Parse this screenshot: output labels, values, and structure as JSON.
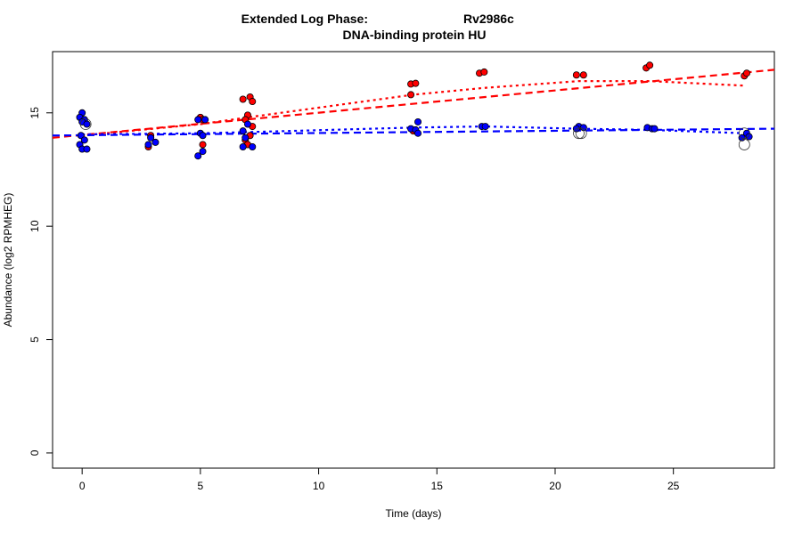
{
  "chart_data": {
    "type": "scatter",
    "title_line1_left": "Extended Log Phase:",
    "title_line1_right": "Rv2986c",
    "title_line2": "DNA-binding protein HU",
    "xlabel": "Time  (days)",
    "ylabel": "Abundance  (log2 RPMHEG)",
    "xlim": [
      -1.25,
      29.27
    ],
    "ylim": [
      -0.67,
      17.7
    ],
    "xticks": [
      0,
      5,
      10,
      15,
      20,
      25
    ],
    "yticks": [
      0,
      5,
      10,
      15
    ],
    "grid": false,
    "colors": {
      "red": "#ff0000",
      "blue": "#0000ff"
    },
    "series": [
      {
        "color": "red",
        "points": [
          [
            13.9,
            16.27
          ],
          [
            14.1,
            16.3
          ],
          [
            13.9,
            15.8
          ],
          [
            16.8,
            16.75
          ],
          [
            17.0,
            16.8
          ],
          [
            20.9,
            16.67
          ],
          [
            21.2,
            16.67
          ],
          [
            23.85,
            16.98
          ],
          [
            24.0,
            17.1
          ],
          [
            28.0,
            16.63
          ],
          [
            28.1,
            16.75
          ],
          [
            6.8,
            15.6
          ],
          [
            7.1,
            15.7
          ],
          [
            7.2,
            15.5
          ],
          [
            7.0,
            14.9
          ],
          [
            6.9,
            14.7
          ],
          [
            7.2,
            14.4
          ],
          [
            7.1,
            14.0
          ],
          [
            6.9,
            13.8
          ],
          [
            7.0,
            13.6
          ],
          [
            5.0,
            14.8
          ],
          [
            5.1,
            14.7
          ],
          [
            5.1,
            13.6
          ],
          [
            2.9,
            14.0
          ],
          [
            2.8,
            13.5
          ],
          [
            14.0,
            14.2
          ]
        ]
      },
      {
        "color": "blue",
        "points": [
          [
            0.0,
            15.0
          ],
          [
            -0.1,
            14.8
          ],
          [
            0.1,
            14.7
          ],
          [
            0.0,
            14.6
          ],
          [
            0.2,
            14.5
          ],
          [
            -0.05,
            14.0
          ],
          [
            0.1,
            13.8
          ],
          [
            -0.1,
            13.6
          ],
          [
            0.0,
            13.4
          ],
          [
            0.2,
            13.4
          ],
          [
            2.9,
            13.9
          ],
          [
            3.1,
            13.7
          ],
          [
            2.8,
            13.6
          ],
          [
            4.9,
            14.7
          ],
          [
            5.2,
            14.7
          ],
          [
            5.0,
            14.1
          ],
          [
            5.1,
            14.0
          ],
          [
            5.1,
            13.3
          ],
          [
            4.9,
            13.1
          ],
          [
            7.0,
            14.5
          ],
          [
            6.8,
            14.2
          ],
          [
            6.9,
            13.9
          ],
          [
            6.8,
            13.5
          ],
          [
            7.2,
            13.5
          ],
          [
            14.2,
            14.6
          ],
          [
            13.9,
            14.3
          ],
          [
            14.1,
            14.25
          ],
          [
            14.2,
            14.1
          ],
          [
            16.9,
            14.4
          ],
          [
            17.05,
            14.4
          ],
          [
            21.0,
            14.4
          ],
          [
            21.2,
            14.35
          ],
          [
            20.9,
            14.3
          ],
          [
            23.9,
            14.35
          ],
          [
            24.1,
            14.3
          ],
          [
            24.2,
            14.3
          ],
          [
            28.1,
            14.1
          ],
          [
            28.2,
            13.95
          ],
          [
            27.9,
            13.9
          ]
        ]
      }
    ],
    "highlighted_points": [
      [
        0.15,
        14.5
      ],
      [
        21.0,
        14.1
      ],
      [
        21.1,
        14.1
      ],
      [
        28.0,
        14.1
      ],
      [
        28.0,
        13.6
      ]
    ],
    "fit_lines": [
      {
        "color": "red",
        "style": "dashed",
        "x": [
          -1.25,
          29.27
        ],
        "y": [
          13.9,
          16.9
        ]
      },
      {
        "color": "red",
        "style": "dotted",
        "x": [
          0,
          5,
          7,
          14,
          17,
          21,
          24,
          28
        ],
        "y": [
          14.0,
          14.5,
          14.8,
          15.8,
          16.1,
          16.4,
          16.4,
          16.2
        ]
      },
      {
        "color": "blue",
        "style": "dashed",
        "x": [
          -1.25,
          29.27
        ],
        "y": [
          14.0,
          14.3
        ]
      },
      {
        "color": "blue",
        "style": "dotted",
        "x": [
          0,
          5,
          7,
          14,
          17,
          21,
          24,
          28
        ],
        "y": [
          14.05,
          14.1,
          14.15,
          14.35,
          14.4,
          14.3,
          14.25,
          14.1
        ]
      }
    ]
  }
}
